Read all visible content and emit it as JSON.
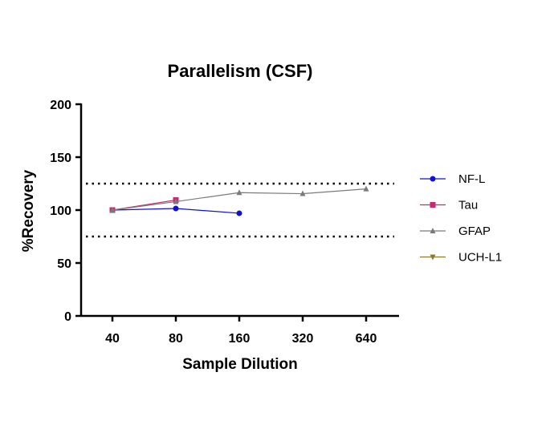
{
  "chart_data": {
    "type": "line",
    "title": "Parallelism (CSF)",
    "xlabel": "Sample Dilution",
    "ylabel": "%Recovery",
    "categories": [
      "40",
      "80",
      "160",
      "320",
      "640"
    ],
    "ylim": [
      0,
      200
    ],
    "yticks": [
      "0",
      "50",
      "100",
      "150",
      "200"
    ],
    "reference_lines": [
      75,
      125
    ],
    "grid": false,
    "legend_position": "right",
    "series": [
      {
        "name": "NF-L",
        "color": "#1010d0",
        "marker": "circle",
        "values": [
          100,
          101.5,
          97,
          null,
          null
        ]
      },
      {
        "name": "Tau",
        "color": "#c8286e",
        "marker": "square",
        "values": [
          100,
          109.5,
          null,
          null,
          null
        ]
      },
      {
        "name": "GFAP",
        "color": "#7a7a7a",
        "marker": "triangle-up",
        "values": [
          100,
          108,
          116.5,
          115.5,
          120
        ]
      },
      {
        "name": "UCH-L1",
        "color": "#8a7a2a",
        "marker": "triangle-down",
        "values": [
          null,
          null,
          null,
          null,
          null
        ]
      }
    ]
  }
}
